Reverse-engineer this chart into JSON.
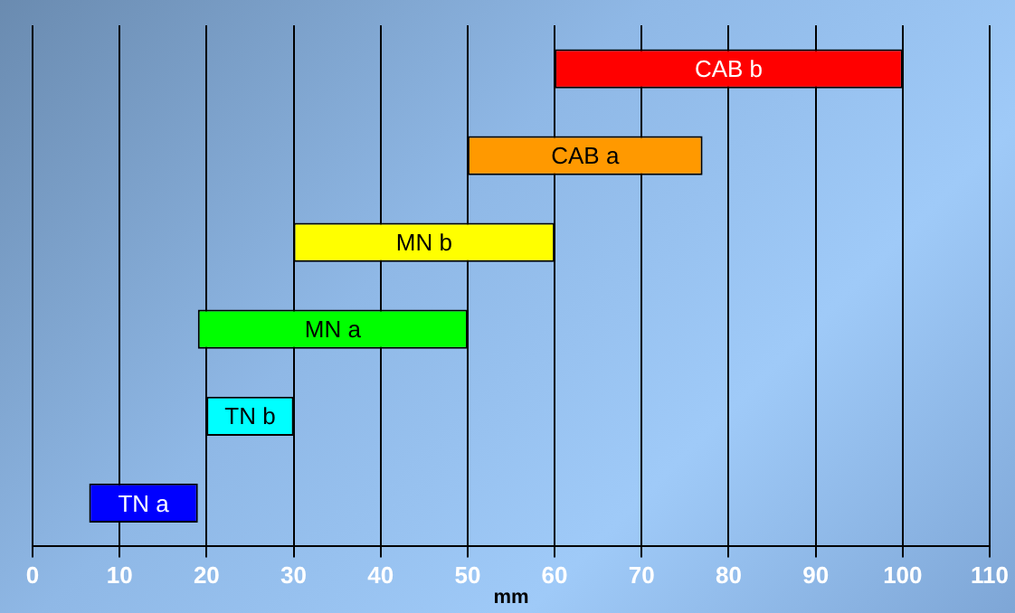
{
  "chart_data": {
    "type": "bar",
    "orientation": "horizontal",
    "xlabel": "mm",
    "categories": [
      "CAB b",
      "CAB a",
      "MN b",
      "MN a",
      "TN b",
      "TN a"
    ],
    "base": [
      60,
      50,
      30,
      19,
      20,
      6.5
    ],
    "values": [
      40,
      27,
      30,
      31,
      10,
      12.5
    ],
    "colors": [
      "#ff0000",
      "#ff9900",
      "#ffff00",
      "#00ff00",
      "#00ffff",
      "#0000ff"
    ],
    "xlim": [
      0,
      110
    ],
    "xticks": [
      0,
      10,
      20,
      30,
      40,
      50,
      60,
      70,
      80,
      90,
      100,
      110
    ],
    "grid": "x",
    "tick_labels": "x"
  }
}
